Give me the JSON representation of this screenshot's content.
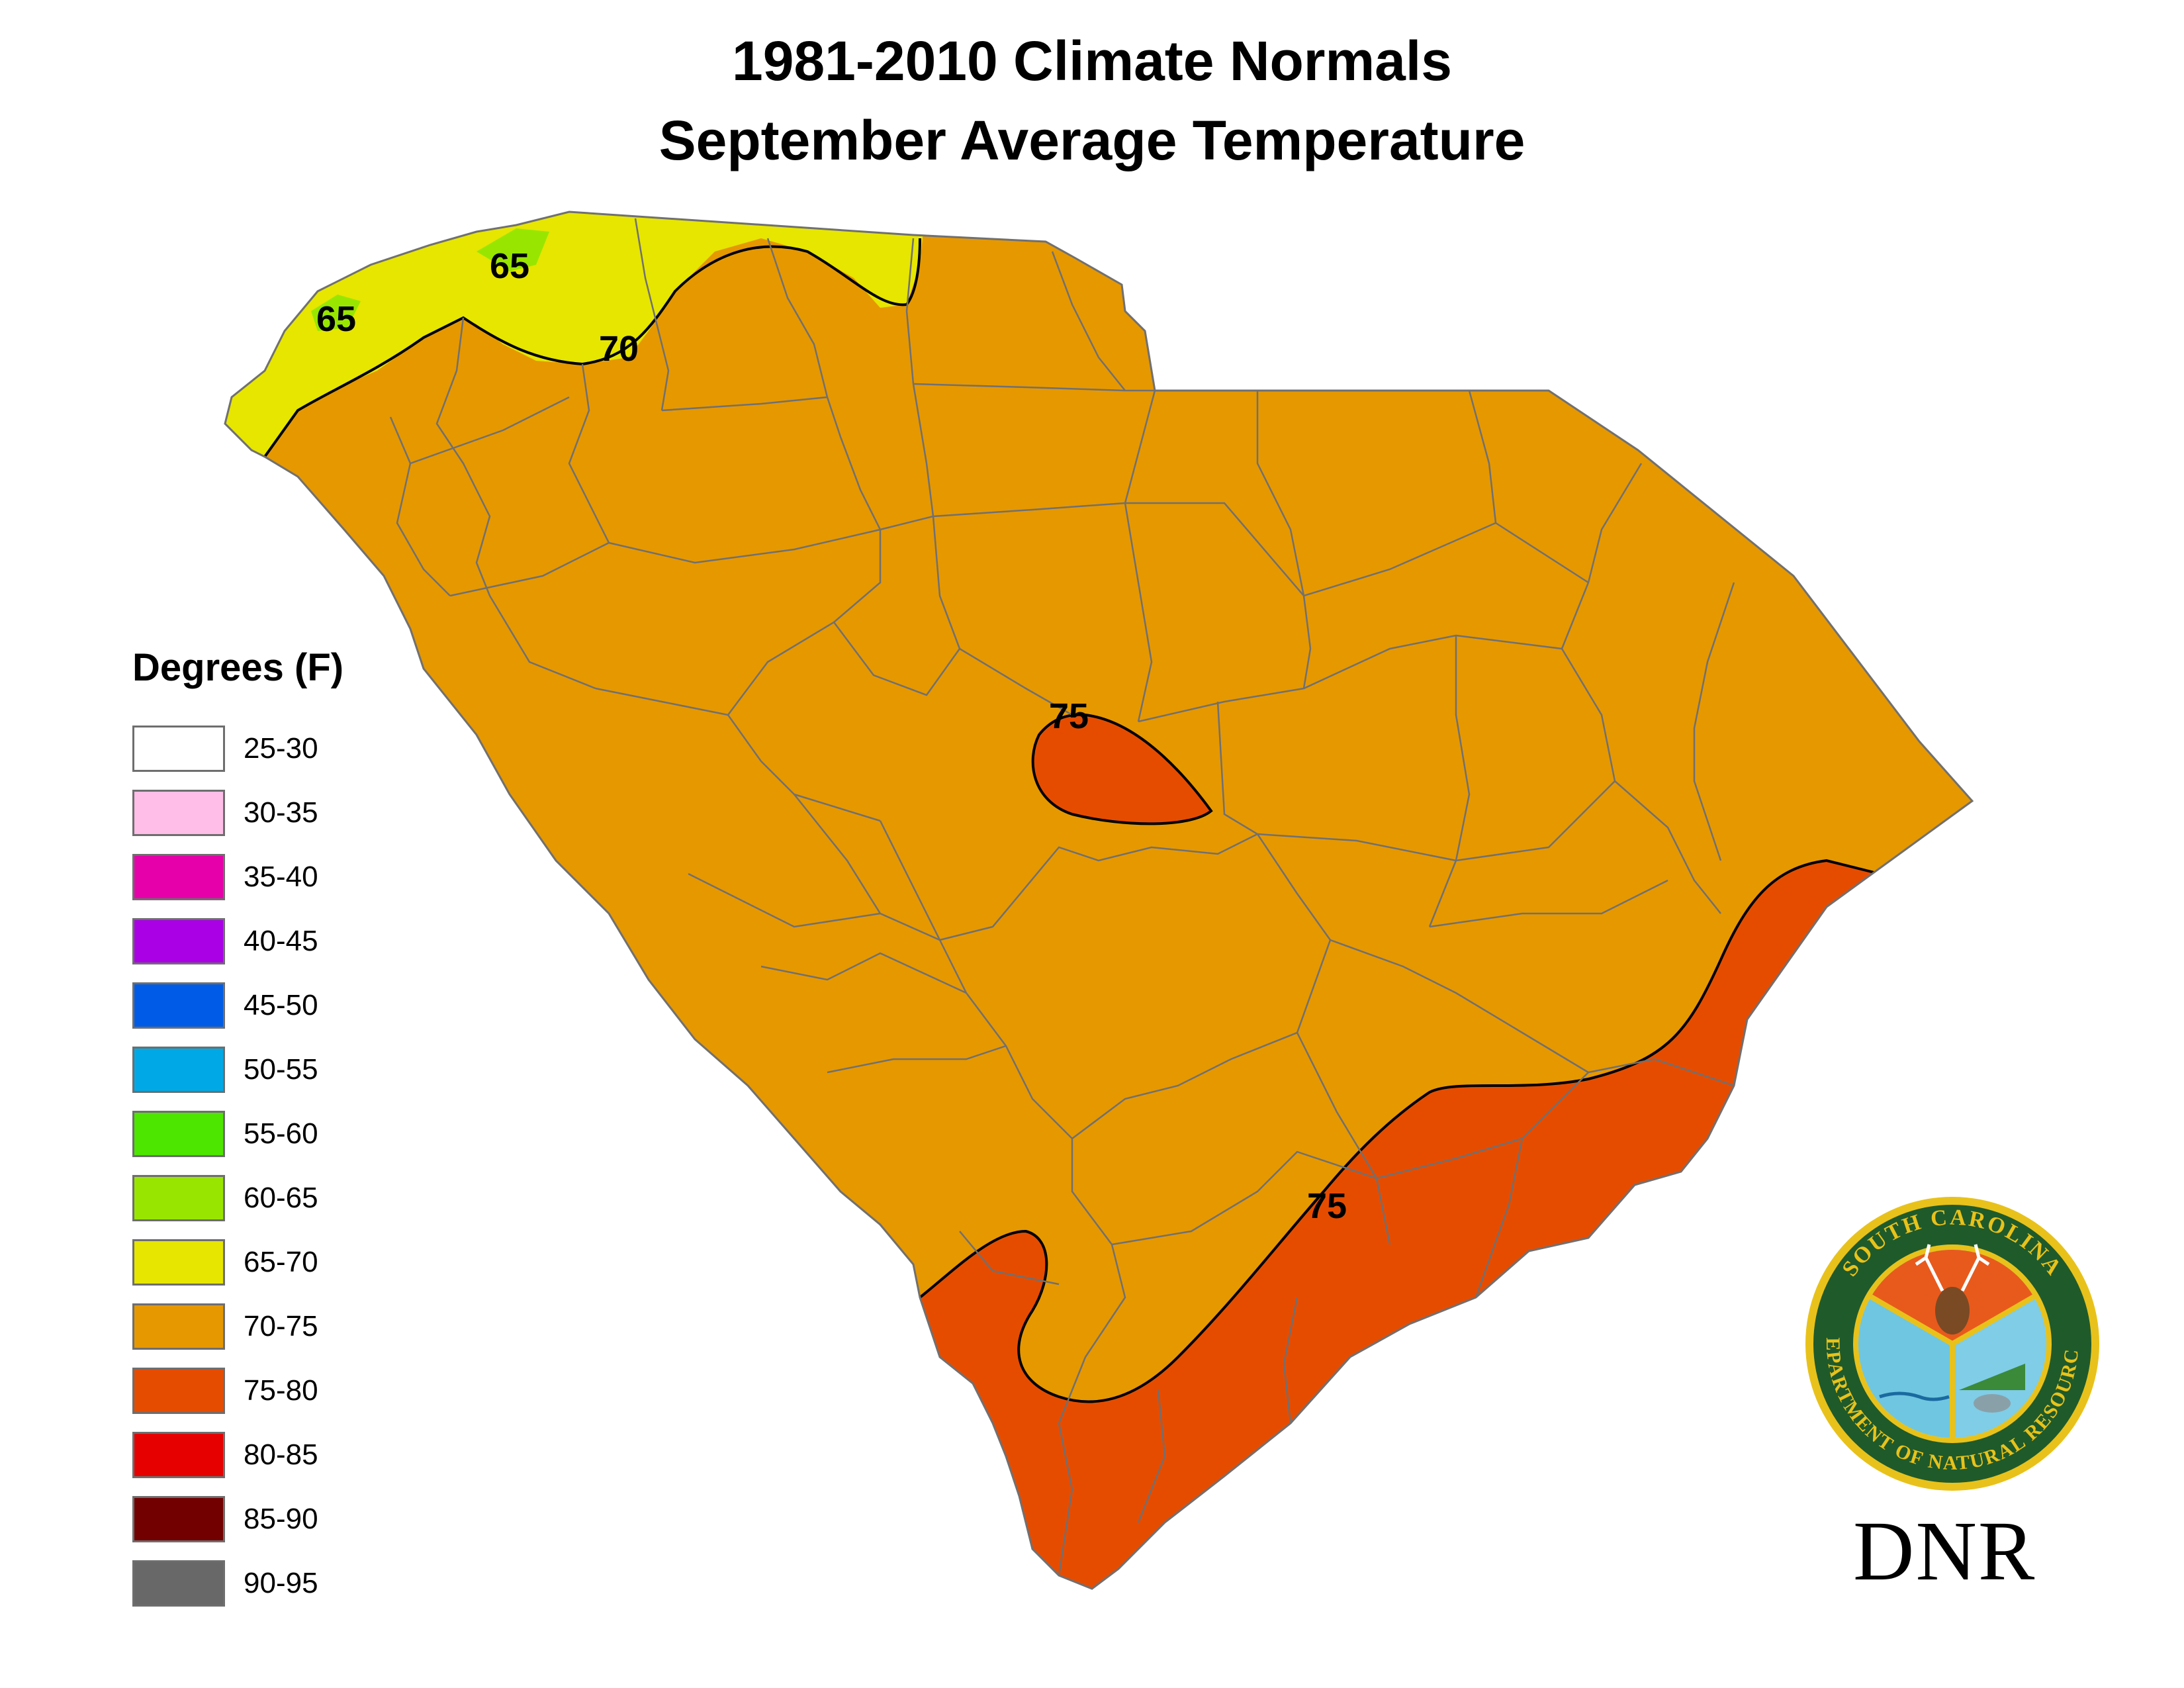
{
  "title": {
    "line1": "1981-2010 Climate Normals",
    "line2": "September Average Temperature"
  },
  "legend": {
    "title": "Degrees (F)",
    "items": [
      {
        "label": "25-30",
        "color": "#ffffff"
      },
      {
        "label": "30-35",
        "color": "#ffbee8"
      },
      {
        "label": "35-40",
        "color": "#e600a9"
      },
      {
        "label": "40-45",
        "color": "#a900e6"
      },
      {
        "label": "45-50",
        "color": "#005ce6"
      },
      {
        "label": "50-55",
        "color": "#00a9e6"
      },
      {
        "label": "55-60",
        "color": "#4ce600"
      },
      {
        "label": "60-65",
        "color": "#98e600"
      },
      {
        "label": "65-70",
        "color": "#e6e600"
      },
      {
        "label": "70-75",
        "color": "#e69800"
      },
      {
        "label": "75-80",
        "color": "#e64c00"
      },
      {
        "label": "80-85",
        "color": "#e60000"
      },
      {
        "label": "85-90",
        "color": "#730000"
      },
      {
        "label": "90-95",
        "color": "#686868"
      }
    ]
  },
  "contours": {
    "label_65a": "65",
    "label_65b": "65",
    "label_70": "70",
    "label_75_center": "75",
    "label_75_coast": "75"
  },
  "logo": {
    "ring_top": "SOUTH CAROLINA",
    "ring_bottom": "DEPARTMENT OF NATURAL RESOURCES",
    "abbrev": "DNR"
  },
  "colors": {
    "zone_60_65": "#98e600",
    "zone_65_70": "#e6e600",
    "zone_70_75": "#e69800",
    "zone_75_80": "#e64c00",
    "county_lines": "#707070",
    "isotherm": "#000000",
    "logo_green": "#1f5a2b",
    "logo_gold": "#e8c21a"
  }
}
